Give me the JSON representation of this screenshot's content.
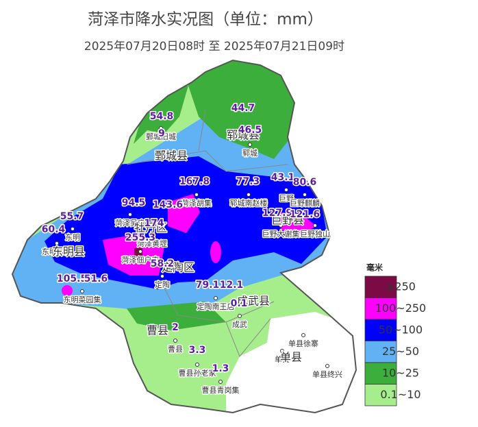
{
  "header": {
    "title": "菏泽市降水实况图（单位：mm）",
    "subtitle": "2025年07月20日08时  至  2025年07月21日09时"
  },
  "legend": {
    "title": "毫米",
    "items": [
      {
        "label": "≥250",
        "color": "#7b0a45"
      },
      {
        "label": "100~250",
        "color": "#ff00ff"
      },
      {
        "label": "50~100",
        "color": "#0000ff"
      },
      {
        "label": "25~50",
        "color": "#61b1f5"
      },
      {
        "label": "10~25",
        "color": "#3cae3c"
      },
      {
        "label": "0.1~10",
        "color": "#a6ee8c"
      }
    ]
  },
  "stations": [
    54.8,
    9,
    44.7,
    46.5,
    167.8,
    77.3,
    43.1,
    80.6,
    94.5,
    143.6,
    55.7,
    174,
    60.4,
    255.3,
    127.9,
    121.6,
    58.2,
    105.5,
    51.6,
    79.1,
    12.1,
    0.1,
    2,
    3.3,
    1.3
  ],
  "station_names": [
    "鄄城旧城",
    "郓城",
    "菏泽胡集",
    "郓城南赵楼",
    "巨野",
    "巨野麒麟",
    "菏泽吴店",
    "东明",
    "东明沙窝",
    "巨野大谢集",
    "巨野独山",
    "菏泽黄堽",
    "菏泽佃户屯",
    "定陶",
    "东明菜园集",
    "定陶南王店",
    "成武",
    "曹县",
    "曹县孙老家",
    "曹县青岗集",
    "单县徐寨",
    "单县",
    "单县终兴"
  ],
  "counties": [
    "鄄城县",
    "郓城县",
    "巨野县",
    "东明县",
    "牡丹区",
    "定陶区",
    "成武县",
    "曹县",
    "单县"
  ]
}
